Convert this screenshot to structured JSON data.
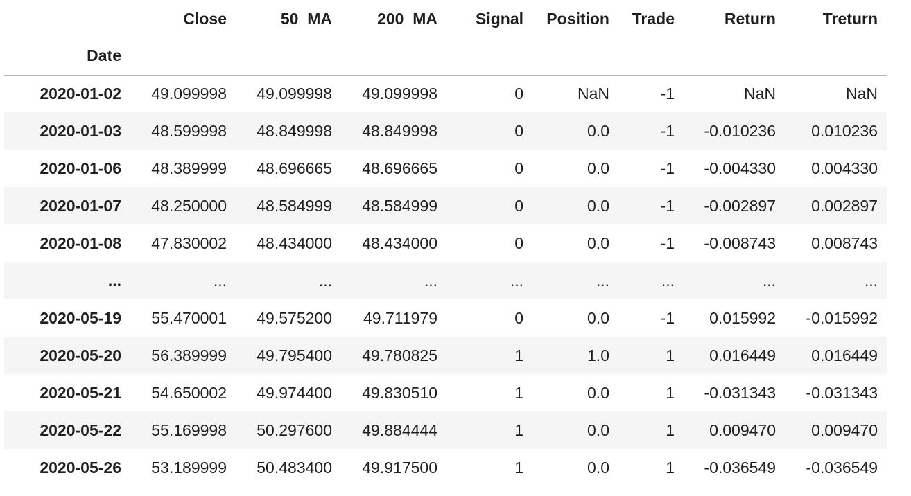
{
  "table": {
    "index_name": "Date",
    "columns": [
      "Close",
      "50_MA",
      "200_MA",
      "Signal",
      "Position",
      "Trade",
      "Return",
      "Treturn"
    ],
    "rows": [
      {
        "index": "2020-01-02",
        "cells": [
          "49.099998",
          "49.099998",
          "49.099998",
          "0",
          "NaN",
          "-1",
          "NaN",
          "NaN"
        ]
      },
      {
        "index": "2020-01-03",
        "cells": [
          "48.599998",
          "48.849998",
          "48.849998",
          "0",
          "0.0",
          "-1",
          "-0.010236",
          "0.010236"
        ]
      },
      {
        "index": "2020-01-06",
        "cells": [
          "48.389999",
          "48.696665",
          "48.696665",
          "0",
          "0.0",
          "-1",
          "-0.004330",
          "0.004330"
        ]
      },
      {
        "index": "2020-01-07",
        "cells": [
          "48.250000",
          "48.584999",
          "48.584999",
          "0",
          "0.0",
          "-1",
          "-0.002897",
          "0.002897"
        ]
      },
      {
        "index": "2020-01-08",
        "cells": [
          "47.830002",
          "48.434000",
          "48.434000",
          "0",
          "0.0",
          "-1",
          "-0.008743",
          "0.008743"
        ]
      },
      {
        "index": "...",
        "cells": [
          "...",
          "...",
          "...",
          "...",
          "...",
          "...",
          "...",
          "..."
        ]
      },
      {
        "index": "2020-05-19",
        "cells": [
          "55.470001",
          "49.575200",
          "49.711979",
          "0",
          "0.0",
          "-1",
          "0.015992",
          "-0.015992"
        ]
      },
      {
        "index": "2020-05-20",
        "cells": [
          "56.389999",
          "49.795400",
          "49.780825",
          "1",
          "1.0",
          "1",
          "0.016449",
          "0.016449"
        ]
      },
      {
        "index": "2020-05-21",
        "cells": [
          "54.650002",
          "49.974400",
          "49.830510",
          "1",
          "0.0",
          "1",
          "-0.031343",
          "-0.031343"
        ]
      },
      {
        "index": "2020-05-22",
        "cells": [
          "55.169998",
          "50.297600",
          "49.884444",
          "1",
          "0.0",
          "1",
          "0.009470",
          "0.009470"
        ]
      },
      {
        "index": "2020-05-26",
        "cells": [
          "53.189999",
          "50.483400",
          "49.917500",
          "1",
          "0.0",
          "1",
          "-0.036549",
          "-0.036549"
        ]
      }
    ]
  }
}
